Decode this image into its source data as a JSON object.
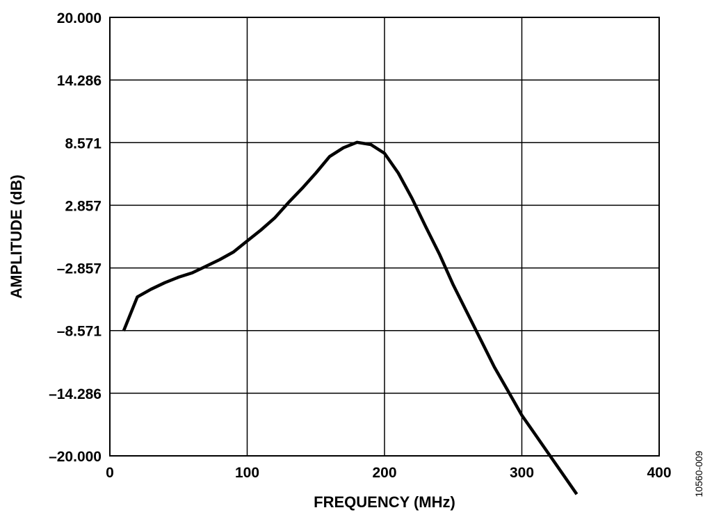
{
  "chart_data": {
    "type": "line",
    "title": "",
    "xlabel": "FREQUENCY (MHz)",
    "ylabel": "AMPLITUDE (dB)",
    "xlim": [
      0,
      400
    ],
    "ylim": [
      -20.0,
      20.0
    ],
    "x_ticks": [
      0,
      100,
      200,
      300,
      400
    ],
    "x_tick_labels": [
      "0",
      "100",
      "200",
      "300",
      "400"
    ],
    "y_ticks": [
      20.0,
      14.286,
      8.571,
      2.857,
      -2.857,
      -8.571,
      -14.286,
      -20.0
    ],
    "y_tick_labels": [
      "20.000",
      "14.286",
      "8.571",
      "2.857",
      "–2.857",
      "–8.571",
      "–14.286",
      "–20.000"
    ],
    "grid": true,
    "legend": "none",
    "line_color": "#000000",
    "series": [
      {
        "x": [
          10,
          20,
          30,
          40,
          50,
          60,
          70,
          80,
          90,
          100,
          110,
          120,
          130,
          140,
          150,
          160,
          170,
          180,
          190,
          200,
          210,
          220,
          230,
          240,
          250,
          260,
          270,
          280,
          290,
          300,
          310,
          320,
          330,
          340
        ],
        "values": [
          -8.6,
          -5.5,
          -4.8,
          -4.2,
          -3.7,
          -3.3,
          -2.7,
          -2.1,
          -1.4,
          -0.4,
          0.6,
          1.7,
          3.1,
          4.4,
          5.8,
          7.3,
          8.1,
          8.6,
          8.4,
          7.6,
          5.8,
          3.5,
          0.9,
          -1.6,
          -4.4,
          -6.9,
          -9.4,
          -11.9,
          -14.1,
          -16.3,
          -18.1,
          -19.9,
          -21.7,
          -23.5
        ]
      }
    ]
  },
  "figure_id": "10560-009"
}
